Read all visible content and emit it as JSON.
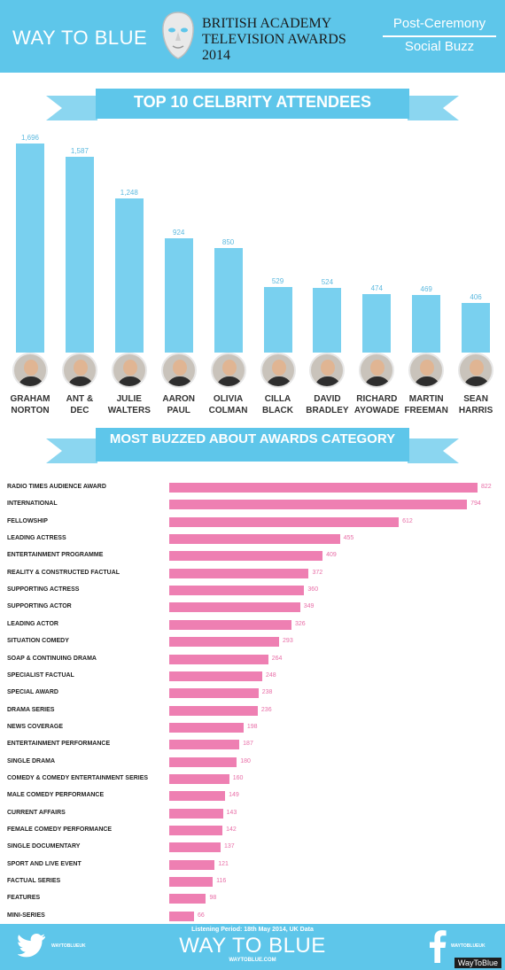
{
  "header": {
    "brand": "WAY TO BLUE",
    "title_lines": [
      "BRITISH ACADEMY",
      "TELEVISION AWARDS",
      "2014"
    ],
    "right_top": "Post-Ceremony",
    "right_bottom": "Social Buzz"
  },
  "chart_data": [
    {
      "type": "bar",
      "title": "TOP 10 CELBRITY ATTENDEES",
      "categories": [
        "GRAHAM NORTON",
        "ANT & DEC",
        "JULIE WALTERS",
        "AARON PAUL",
        "OLIVIA COLMAN",
        "CILLA BLACK",
        "DAVID BRADLEY",
        "RICHARD AYOWADE",
        "MARTIN FREEMAN",
        "SEAN HARRIS"
      ],
      "name_lines": [
        [
          "GRAHAM",
          "NORTON"
        ],
        [
          "ANT &",
          "DEC"
        ],
        [
          "JULIE",
          "WALTERS"
        ],
        [
          "AARON",
          "PAUL"
        ],
        [
          "OLIVIA",
          "COLMAN"
        ],
        [
          "CILLA",
          "BLACK"
        ],
        [
          "DAVID",
          "BRADLEY"
        ],
        [
          "RICHARD",
          "AYOWADE"
        ],
        [
          "MARTIN",
          "FREEMAN"
        ],
        [
          "SEAN",
          "HARRIS"
        ]
      ],
      "values": [
        1696,
        1587,
        1248,
        924,
        850,
        529,
        524,
        474,
        469,
        406
      ],
      "value_labels": [
        "1,696",
        "1,587",
        "1,248",
        "924",
        "850",
        "529",
        "524",
        "474",
        "469",
        "406"
      ],
      "ylim": [
        0,
        1696
      ],
      "color": "#79d0ef"
    },
    {
      "type": "bar",
      "orientation": "horizontal",
      "title": "MOST BUZZED ABOUT AWARDS CATEGORY",
      "categories": [
        "RADIO TIMES AUDIENCE AWARD",
        "INTERNATIONAL",
        "FELLOWSHIP",
        "LEADING ACTRESS",
        "ENTERTAINMENT PROGRAMME",
        "REALITY & CONSTRUCTED FACTUAL",
        "SUPPORTING ACTRESS",
        "SUPPORTING ACTOR",
        "LEADING ACTOR",
        "SITUATION COMEDY",
        "SOAP & CONTINUING DRAMA",
        "SPECIALIST FACTUAL",
        "SPECIAL AWARD",
        "DRAMA SERIES",
        "NEWS COVERAGE",
        "ENTERTAINMENT PERFORMANCE",
        "SINGLE DRAMA",
        "COMEDY & COMEDY ENTERTAINMENT SERIES",
        "MALE COMEDY PERFORMANCE",
        "CURRENT AFFAIRS",
        "FEMALE COMEDY PERFORMANCE",
        "SINGLE DOCUMENTARY",
        "SPORT AND LIVE EVENT",
        "FACTUAL SERIES",
        "FEATURES",
        "MINI-SERIES"
      ],
      "values": [
        822,
        794,
        612,
        455,
        409,
        372,
        360,
        349,
        326,
        293,
        264,
        248,
        238,
        236,
        198,
        187,
        180,
        160,
        149,
        143,
        142,
        137,
        121,
        116,
        98,
        66
      ],
      "xlim": [
        0,
        822
      ],
      "color": "#ee7fb2"
    }
  ],
  "footer": {
    "listening_period": "Listening Period: 18th May 2014, UK Data",
    "brand": "WAY TO BLUE",
    "url": "WAYTOBLUE.COM",
    "twitter_handle": "WAYTOBLUEUK",
    "facebook_handle": "WAYTOBLUEUK"
  },
  "credit": "WayToBlue",
  "colors": {
    "header": "#5ec6ea",
    "banner": "#5ec6ea",
    "banner_tail": "#8bd6f0"
  }
}
